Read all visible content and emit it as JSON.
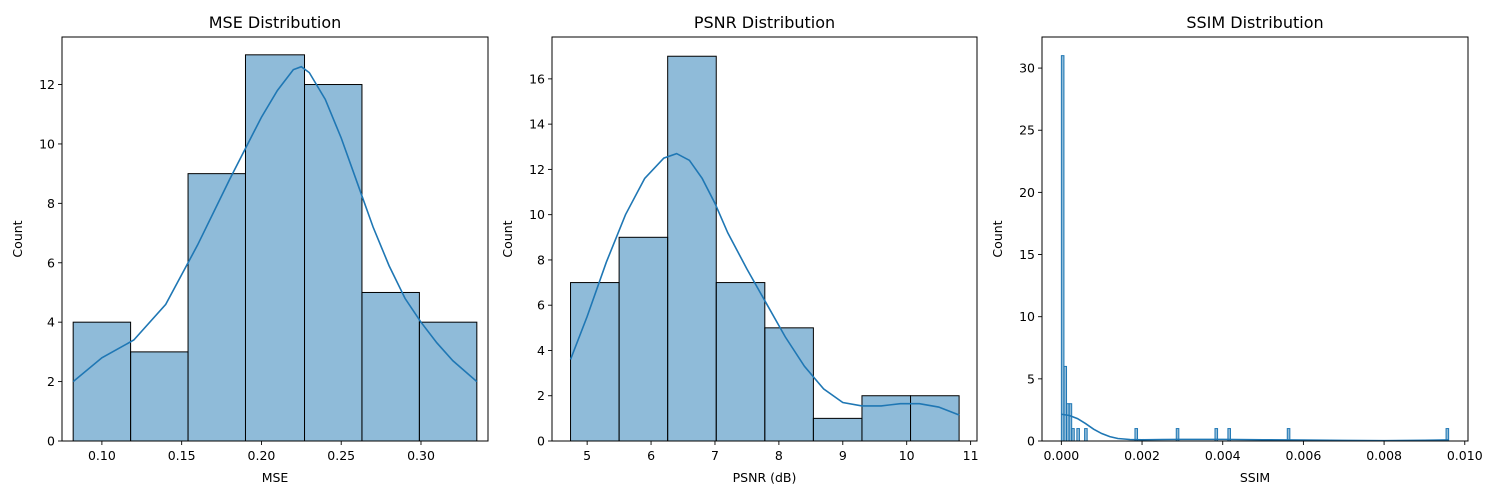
{
  "chart_data": [
    {
      "type": "bar",
      "title": "MSE Distribution",
      "xlabel": "MSE",
      "ylabel": "Count",
      "xlim": [
        0.075,
        0.342
      ],
      "ylim": [
        0,
        13.6
      ],
      "xticks": [
        0.1,
        0.15,
        0.2,
        0.25,
        0.3
      ],
      "xtick_labels": [
        "0.10",
        "0.15",
        "0.20",
        "0.25",
        "0.30"
      ],
      "yticks": [
        0,
        2,
        4,
        6,
        8,
        10,
        12
      ],
      "ytick_labels": [
        "0",
        "2",
        "4",
        "6",
        "8",
        "10",
        "12"
      ],
      "bins": [
        {
          "x0": 0.082,
          "x1": 0.118,
          "count": 4
        },
        {
          "x0": 0.118,
          "x1": 0.154,
          "count": 3
        },
        {
          "x0": 0.154,
          "x1": 0.19,
          "count": 9
        },
        {
          "x0": 0.19,
          "x1": 0.227,
          "count": 13
        },
        {
          "x0": 0.227,
          "x1": 0.263,
          "count": 12
        },
        {
          "x0": 0.263,
          "x1": 0.299,
          "count": 5
        },
        {
          "x0": 0.299,
          "x1": 0.335,
          "count": 4
        }
      ],
      "kde": {
        "x": [
          0.082,
          0.1,
          0.12,
          0.14,
          0.16,
          0.18,
          0.2,
          0.21,
          0.22,
          0.225,
          0.23,
          0.24,
          0.25,
          0.26,
          0.27,
          0.28,
          0.29,
          0.3,
          0.31,
          0.32,
          0.335
        ],
        "y": [
          2.0,
          2.8,
          3.4,
          4.6,
          6.6,
          8.8,
          10.9,
          11.8,
          12.5,
          12.6,
          12.4,
          11.5,
          10.2,
          8.7,
          7.2,
          5.9,
          4.8,
          4.0,
          3.3,
          2.7,
          2.0
        ]
      },
      "grid": false
    },
    {
      "type": "bar",
      "title": "PSNR Distribution",
      "xlabel": "PSNR (dB)",
      "ylabel": "Count",
      "xlim": [
        4.45,
        11.1
      ],
      "ylim": [
        0,
        17.85
      ],
      "xticks": [
        5,
        6,
        7,
        8,
        9,
        10,
        11
      ],
      "xtick_labels": [
        "5",
        "6",
        "7",
        "8",
        "9",
        "10",
        "11"
      ],
      "yticks": [
        0,
        2,
        4,
        6,
        8,
        10,
        12,
        14,
        16
      ],
      "ytick_labels": [
        "0",
        "2",
        "4",
        "6",
        "8",
        "10",
        "12",
        "14",
        "16"
      ],
      "bins": [
        {
          "x0": 4.74,
          "x1": 5.5,
          "count": 7
        },
        {
          "x0": 5.5,
          "x1": 6.26,
          "count": 9
        },
        {
          "x0": 6.26,
          "x1": 7.02,
          "count": 17
        },
        {
          "x0": 7.02,
          "x1": 7.78,
          "count": 7
        },
        {
          "x0": 7.78,
          "x1": 8.54,
          "count": 5
        },
        {
          "x0": 8.54,
          "x1": 9.3,
          "count": 1
        },
        {
          "x0": 9.3,
          "x1": 10.06,
          "count": 2
        },
        {
          "x0": 10.06,
          "x1": 10.82,
          "count": 2
        }
      ],
      "kde": {
        "x": [
          4.74,
          5.0,
          5.3,
          5.6,
          5.9,
          6.2,
          6.4,
          6.6,
          6.8,
          7.0,
          7.2,
          7.5,
          7.8,
          8.1,
          8.4,
          8.7,
          9.0,
          9.3,
          9.6,
          9.9,
          10.2,
          10.5,
          10.82
        ],
        "y": [
          3.6,
          5.5,
          7.9,
          10.0,
          11.6,
          12.5,
          12.7,
          12.4,
          11.6,
          10.5,
          9.2,
          7.6,
          6.1,
          4.6,
          3.3,
          2.3,
          1.7,
          1.55,
          1.55,
          1.65,
          1.65,
          1.5,
          1.15
        ]
      },
      "grid": false
    },
    {
      "type": "bar",
      "title": "SSIM Distribution",
      "xlabel": "SSIM",
      "ylabel": "Count",
      "xlim": [
        -0.00048,
        0.01008
      ],
      "ylim": [
        0,
        32.5
      ],
      "xticks": [
        0.0,
        0.002,
        0.004,
        0.006,
        0.008,
        0.01
      ],
      "xtick_labels": [
        "0.000",
        "0.002",
        "0.004",
        "0.006",
        "0.008",
        "0.010"
      ],
      "yticks": [
        0,
        5,
        10,
        15,
        20,
        25,
        30
      ],
      "ytick_labels": [
        "0",
        "5",
        "10",
        "15",
        "20",
        "25",
        "30"
      ],
      "bins": [
        {
          "x0": 0.0,
          "x1": 6.4e-05,
          "count": 31
        },
        {
          "x0": 6.4e-05,
          "x1": 0.000128,
          "count": 6
        },
        {
          "x0": 0.000128,
          "x1": 0.000192,
          "count": 3
        },
        {
          "x0": 0.000192,
          "x1": 0.000256,
          "count": 3
        },
        {
          "x0": 0.000256,
          "x1": 0.00032,
          "count": 1
        },
        {
          "x0": 0.000384,
          "x1": 0.000448,
          "count": 1
        },
        {
          "x0": 0.000576,
          "x1": 0.00064,
          "count": 1
        },
        {
          "x0": 0.001824,
          "x1": 0.001888,
          "count": 1
        },
        {
          "x0": 0.002848,
          "x1": 0.002912,
          "count": 1
        },
        {
          "x0": 0.003808,
          "x1": 0.003872,
          "count": 1
        },
        {
          "x0": 0.004128,
          "x1": 0.004192,
          "count": 1
        },
        {
          "x0": 0.0056,
          "x1": 0.005664,
          "count": 1
        },
        {
          "x0": 0.009536,
          "x1": 0.0096,
          "count": 1
        }
      ],
      "kde": {
        "x": [
          0.0,
          0.0002,
          0.0004,
          0.0006,
          0.0008,
          0.001,
          0.0012,
          0.0014,
          0.0017,
          0.002,
          0.0025,
          0.003,
          0.004,
          0.005,
          0.006,
          0.007,
          0.008,
          0.009,
          0.0096
        ],
        "y": [
          2.15,
          2.05,
          1.8,
          1.4,
          0.95,
          0.6,
          0.35,
          0.2,
          0.12,
          0.1,
          0.12,
          0.13,
          0.13,
          0.1,
          0.08,
          0.05,
          0.03,
          0.06,
          0.09
        ]
      },
      "grid": false
    }
  ]
}
